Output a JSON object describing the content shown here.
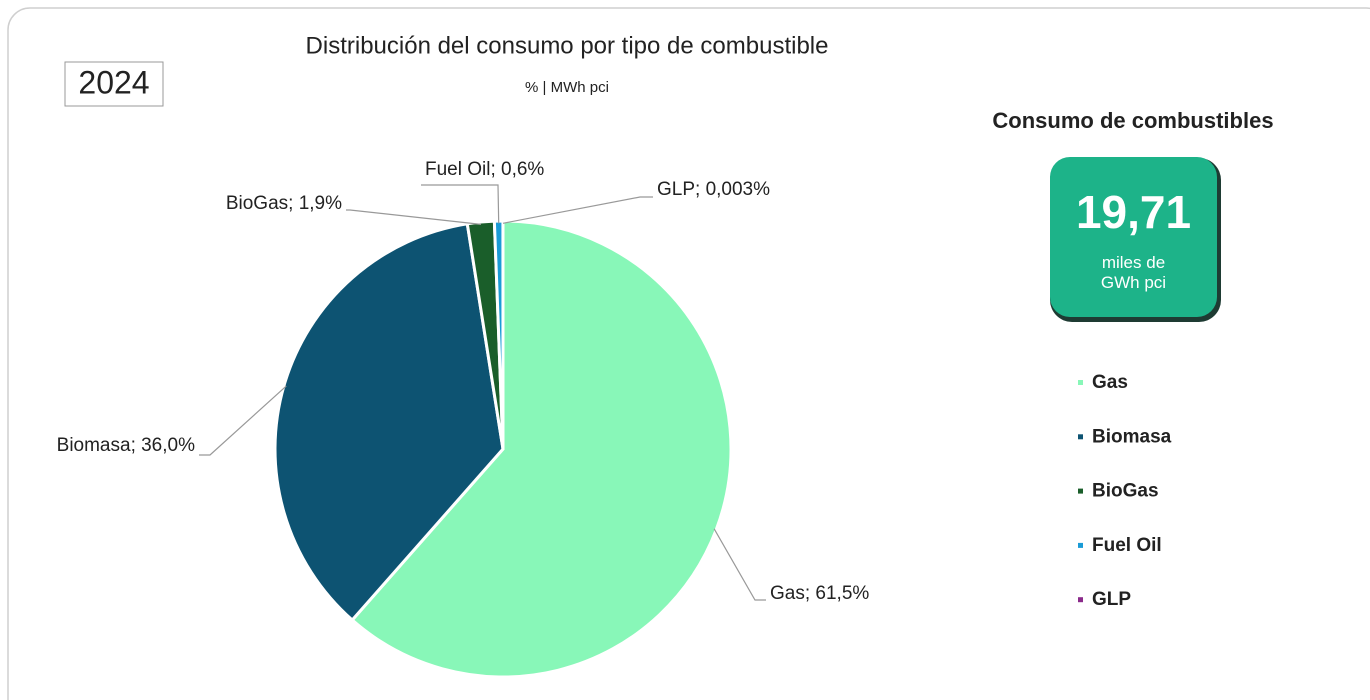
{
  "chart_data": {
    "type": "pie",
    "title": "Distribución del consumo por tipo de combustible",
    "subtitle": "% | MWh pci",
    "year": "2024",
    "categories": [
      "Gas",
      "Biomasa",
      "BioGas",
      "Fuel Oil",
      "GLP"
    ],
    "values": [
      61.5,
      36.0,
      1.9,
      0.6,
      0.003
    ],
    "value_labels": [
      "Gas; 61,5%",
      "Biomasa; 36,0%",
      "BioGas; 1,9%",
      "Fuel Oil; 0,6%",
      "GLP; 0,003%"
    ],
    "colors": [
      "#88f7b8",
      "#0d5372",
      "#1a5e2a",
      "#1a9bd6",
      "#8a2a8a"
    ],
    "legend": "right"
  },
  "kpi": {
    "title": "Consumo de combustibles",
    "value": 19.71,
    "value_label": "19,71",
    "unit": "miles de GWh pci"
  }
}
